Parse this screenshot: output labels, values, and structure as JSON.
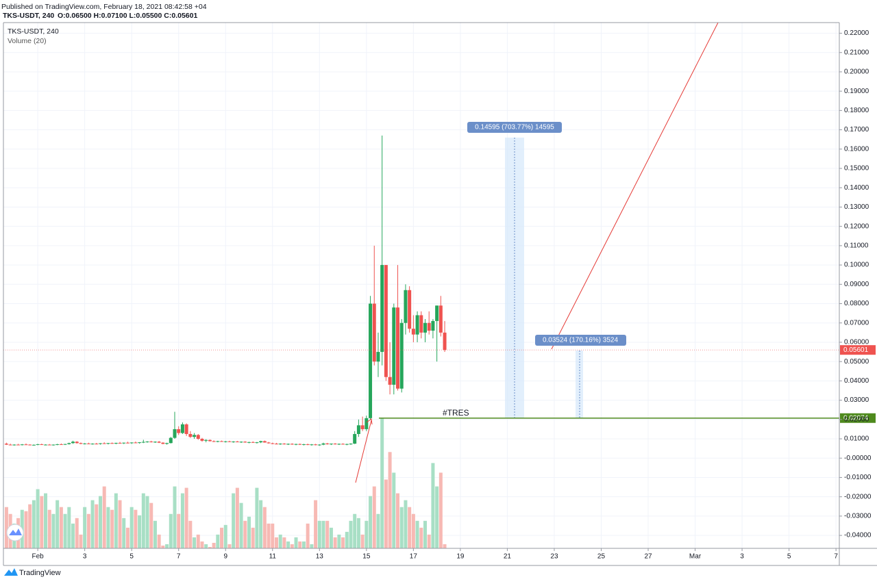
{
  "header": {
    "published": "Published on TradingView.com, February 18, 2021 08:42:58 +04",
    "symbol": "TKS-USDT, 240",
    "ohlc": "O:0.06500 H:0.07100 L:0.05500 C:0.05601",
    "volume_label": "Volume (20)"
  },
  "footer": {
    "brand": "TradingView"
  },
  "measures": [
    "0.14595 (703.77%) 14595",
    "0.03524 (170.16%) 3524"
  ],
  "chart_data": {
    "type": "candlestick",
    "up_color": "#26a65b",
    "down_color": "#ef5350",
    "up_volume_color": "#a8dfc5",
    "down_volume_color": "#f7b9b4",
    "xlim": [
      -35.1,
      819.4
    ],
    "xticks": [
      {
        "value": 0,
        "label": "Feb"
      },
      {
        "value": 48,
        "label": "3"
      },
      {
        "value": 96,
        "label": "5"
      },
      {
        "value": 144,
        "label": "7"
      },
      {
        "value": 192,
        "label": "9"
      },
      {
        "value": 240,
        "label": "11"
      },
      {
        "value": 288,
        "label": "13"
      },
      {
        "value": 336,
        "label": "15"
      },
      {
        "value": 384,
        "label": "17"
      },
      {
        "value": 432,
        "label": "19"
      },
      {
        "value": 480,
        "label": "21"
      },
      {
        "value": 528,
        "label": "23"
      },
      {
        "value": 576,
        "label": "25"
      },
      {
        "value": 624,
        "label": "27"
      },
      {
        "value": 672,
        "label": "Mar"
      },
      {
        "value": 720,
        "label": "3"
      },
      {
        "value": 768,
        "label": "5"
      },
      {
        "value": 816,
        "label": "7"
      }
    ],
    "ylim": [
      -0.0467,
      0.2255
    ],
    "yticks": [
      {
        "value": 0.22,
        "label": "0.22000"
      },
      {
        "value": 0.21,
        "label": "0.21000"
      },
      {
        "value": 0.2,
        "label": "0.20000"
      },
      {
        "value": 0.19,
        "label": "0.19000"
      },
      {
        "value": 0.18,
        "label": "0.18000"
      },
      {
        "value": 0.17,
        "label": "0.17000"
      },
      {
        "value": 0.16,
        "label": "0.16000"
      },
      {
        "value": 0.15,
        "label": "0.15000"
      },
      {
        "value": 0.14,
        "label": "0.14000"
      },
      {
        "value": 0.13,
        "label": "0.13000"
      },
      {
        "value": 0.12,
        "label": "0.12000"
      },
      {
        "value": 0.11,
        "label": "0.11000"
      },
      {
        "value": 0.1,
        "label": "0.10000"
      },
      {
        "value": 0.09,
        "label": "0.09000"
      },
      {
        "value": 0.08,
        "label": "0.08000"
      },
      {
        "value": 0.07,
        "label": "0.07000"
      },
      {
        "value": 0.06,
        "label": "0.06000"
      },
      {
        "value": 0.05,
        "label": "0.05000"
      },
      {
        "value": 0.04,
        "label": "0.04000"
      },
      {
        "value": 0.03,
        "label": "0.03000"
      },
      {
        "value": 0.02,
        "label": "0.02000"
      },
      {
        "value": 0.01,
        "label": "0.01000"
      },
      {
        "value": 0,
        "label": "-0.00000"
      },
      {
        "value": -0.01,
        "label": "-0.01000"
      },
      {
        "value": -0.02,
        "label": "-0.02000"
      },
      {
        "value": -0.03,
        "label": "-0.03000"
      },
      {
        "value": -0.04,
        "label": "-0.04000"
      }
    ],
    "volume_lim": [
      0,
      100
    ],
    "last_price": {
      "value": 0.05601,
      "label": "0.05601",
      "color": "#ef5350"
    },
    "level": {
      "value": 0.02074,
      "label": "0.02074",
      "name": "#TRES",
      "color": "#4e8a1d"
    },
    "candles": [
      {
        "t": -32,
        "o": 0.0075,
        "h": 0.008,
        "l": 0.0068,
        "c": 0.007,
        "v": 30
      },
      {
        "t": -28,
        "o": 0.007,
        "h": 0.0075,
        "l": 0.0066,
        "c": 0.0068,
        "v": 25
      },
      {
        "t": -24,
        "o": 0.0068,
        "h": 0.0072,
        "l": 0.0065,
        "c": 0.007,
        "v": 18
      },
      {
        "t": -20,
        "o": 0.007,
        "h": 0.0074,
        "l": 0.0067,
        "c": 0.0069,
        "v": 22
      },
      {
        "t": -16,
        "o": 0.0069,
        "h": 0.0073,
        "l": 0.0066,
        "c": 0.0071,
        "v": 28
      },
      {
        "t": -12,
        "o": 0.0071,
        "h": 0.0076,
        "l": 0.0068,
        "c": 0.007,
        "v": 27
      },
      {
        "t": -8,
        "o": 0.007,
        "h": 0.0072,
        "l": 0.0066,
        "c": 0.0068,
        "v": 32
      },
      {
        "t": -4,
        "o": 0.0068,
        "h": 0.0071,
        "l": 0.0065,
        "c": 0.0069,
        "v": 35
      },
      {
        "t": 0,
        "o": 0.0069,
        "h": 0.0074,
        "l": 0.0067,
        "c": 0.0072,
        "v": 43
      },
      {
        "t": 4,
        "o": 0.0072,
        "h": 0.0075,
        "l": 0.0068,
        "c": 0.0069,
        "v": 38
      },
      {
        "t": 8,
        "o": 0.0069,
        "h": 0.0072,
        "l": 0.0066,
        "c": 0.007,
        "v": 40
      },
      {
        "t": 12,
        "o": 0.007,
        "h": 0.0073,
        "l": 0.0067,
        "c": 0.0068,
        "v": 28
      },
      {
        "t": 16,
        "o": 0.0068,
        "h": 0.0071,
        "l": 0.0065,
        "c": 0.007,
        "v": 25
      },
      {
        "t": 20,
        "o": 0.007,
        "h": 0.0074,
        "l": 0.0067,
        "c": 0.0072,
        "v": 35
      },
      {
        "t": 24,
        "o": 0.0072,
        "h": 0.0076,
        "l": 0.0069,
        "c": 0.0071,
        "v": 30
      },
      {
        "t": 28,
        "o": 0.0071,
        "h": 0.0074,
        "l": 0.0068,
        "c": 0.0073,
        "v": 25
      },
      {
        "t": 32,
        "o": 0.0073,
        "h": 0.008,
        "l": 0.007,
        "c": 0.0078,
        "v": 30
      },
      {
        "t": 36,
        "o": 0.0078,
        "h": 0.009,
        "l": 0.0074,
        "c": 0.0085,
        "v": 18
      },
      {
        "t": 40,
        "o": 0.0085,
        "h": 0.0088,
        "l": 0.0075,
        "c": 0.0078,
        "v": 22
      },
      {
        "t": 44,
        "o": 0.0078,
        "h": 0.0081,
        "l": 0.0072,
        "c": 0.0074,
        "v": 10
      },
      {
        "t": 48,
        "o": 0.0074,
        "h": 0.0078,
        "l": 0.0071,
        "c": 0.0076,
        "v": 30
      },
      {
        "t": 52,
        "o": 0.0076,
        "h": 0.008,
        "l": 0.0072,
        "c": 0.0073,
        "v": 25
      },
      {
        "t": 56,
        "o": 0.0073,
        "h": 0.0077,
        "l": 0.007,
        "c": 0.0075,
        "v": 35
      },
      {
        "t": 60,
        "o": 0.0075,
        "h": 0.0079,
        "l": 0.0071,
        "c": 0.0074,
        "v": 32
      },
      {
        "t": 64,
        "o": 0.0074,
        "h": 0.0078,
        "l": 0.007,
        "c": 0.0077,
        "v": 38
      },
      {
        "t": 68,
        "o": 0.0077,
        "h": 0.0082,
        "l": 0.0073,
        "c": 0.0075,
        "v": 45
      },
      {
        "t": 72,
        "o": 0.0075,
        "h": 0.0079,
        "l": 0.0071,
        "c": 0.0078,
        "v": 30
      },
      {
        "t": 76,
        "o": 0.0078,
        "h": 0.0081,
        "l": 0.0074,
        "c": 0.0076,
        "v": 28
      },
      {
        "t": 80,
        "o": 0.0076,
        "h": 0.008,
        "l": 0.0072,
        "c": 0.0079,
        "v": 40
      },
      {
        "t": 84,
        "o": 0.0079,
        "h": 0.0084,
        "l": 0.0075,
        "c": 0.0077,
        "v": 35
      },
      {
        "t": 88,
        "o": 0.0077,
        "h": 0.0081,
        "l": 0.0073,
        "c": 0.008,
        "v": 22
      },
      {
        "t": 92,
        "o": 0.008,
        "h": 0.0085,
        "l": 0.0076,
        "c": 0.0078,
        "v": 15
      },
      {
        "t": 96,
        "o": 0.0078,
        "h": 0.0082,
        "l": 0.0074,
        "c": 0.0081,
        "v": 30
      },
      {
        "t": 100,
        "o": 0.0081,
        "h": 0.0086,
        "l": 0.0077,
        "c": 0.0079,
        "v": 28
      },
      {
        "t": 104,
        "o": 0.0079,
        "h": 0.0083,
        "l": 0.0075,
        "c": 0.0082,
        "v": 24
      },
      {
        "t": 108,
        "o": 0.0082,
        "h": 0.0095,
        "l": 0.0078,
        "c": 0.0084,
        "v": 40
      },
      {
        "t": 112,
        "o": 0.0084,
        "h": 0.0088,
        "l": 0.008,
        "c": 0.0086,
        "v": 38
      },
      {
        "t": 116,
        "o": 0.0086,
        "h": 0.009,
        "l": 0.0081,
        "c": 0.0083,
        "v": 33
      },
      {
        "t": 120,
        "o": 0.0083,
        "h": 0.0087,
        "l": 0.0079,
        "c": 0.0085,
        "v": 20
      },
      {
        "t": 124,
        "o": 0.0085,
        "h": 0.0089,
        "l": 0.0078,
        "c": 0.008,
        "v": 10
      },
      {
        "t": 128,
        "o": 0.008,
        "h": 0.0083,
        "l": 0.0072,
        "c": 0.0074,
        "v": 2
      },
      {
        "t": 132,
        "o": 0.0074,
        "h": 0.008,
        "l": 0.007,
        "c": 0.0078,
        "v": 3
      },
      {
        "t": 136,
        "o": 0.0078,
        "h": 0.011,
        "l": 0.0076,
        "c": 0.0105,
        "v": 25
      },
      {
        "t": 140,
        "o": 0.0105,
        "h": 0.024,
        "l": 0.01,
        "c": 0.015,
        "v": 45
      },
      {
        "t": 144,
        "o": 0.015,
        "h": 0.0165,
        "l": 0.012,
        "c": 0.013,
        "v": 25
      },
      {
        "t": 148,
        "o": 0.013,
        "h": 0.0185,
        "l": 0.0125,
        "c": 0.0175,
        "v": 40
      },
      {
        "t": 152,
        "o": 0.0175,
        "h": 0.018,
        "l": 0.0115,
        "c": 0.0125,
        "v": 44
      },
      {
        "t": 156,
        "o": 0.0125,
        "h": 0.014,
        "l": 0.0105,
        "c": 0.011,
        "v": 20
      },
      {
        "t": 160,
        "o": 0.011,
        "h": 0.013,
        "l": 0.01,
        "c": 0.012,
        "v": 8
      },
      {
        "t": 164,
        "o": 0.012,
        "h": 0.0125,
        "l": 0.0095,
        "c": 0.01,
        "v": 10
      },
      {
        "t": 168,
        "o": 0.01,
        "h": 0.0105,
        "l": 0.0085,
        "c": 0.009,
        "v": 5
      },
      {
        "t": 172,
        "o": 0.009,
        "h": 0.0098,
        "l": 0.0082,
        "c": 0.0094,
        "v": 3
      },
      {
        "t": 176,
        "o": 0.0094,
        "h": 0.0097,
        "l": 0.0086,
        "c": 0.0088,
        "v": 1
      },
      {
        "t": 180,
        "o": 0.0088,
        "h": 0.0092,
        "l": 0.0083,
        "c": 0.0086,
        "v": 4
      },
      {
        "t": 184,
        "o": 0.0086,
        "h": 0.009,
        "l": 0.0082,
        "c": 0.0088,
        "v": 10
      },
      {
        "t": 188,
        "o": 0.0088,
        "h": 0.0091,
        "l": 0.0084,
        "c": 0.0085,
        "v": 15
      },
      {
        "t": 192,
        "o": 0.0085,
        "h": 0.0089,
        "l": 0.0081,
        "c": 0.0087,
        "v": 17
      },
      {
        "t": 196,
        "o": 0.0087,
        "h": 0.009,
        "l": 0.0083,
        "c": 0.0084,
        "v": 3
      },
      {
        "t": 200,
        "o": 0.0084,
        "h": 0.0088,
        "l": 0.008,
        "c": 0.0086,
        "v": 40
      },
      {
        "t": 204,
        "o": 0.0086,
        "h": 0.0089,
        "l": 0.0082,
        "c": 0.0083,
        "v": 44
      },
      {
        "t": 208,
        "o": 0.0083,
        "h": 0.0087,
        "l": 0.0079,
        "c": 0.0085,
        "v": 33
      },
      {
        "t": 212,
        "o": 0.0085,
        "h": 0.0088,
        "l": 0.008,
        "c": 0.0081,
        "v": 20
      },
      {
        "t": 216,
        "o": 0.0081,
        "h": 0.0085,
        "l": 0.0077,
        "c": 0.0083,
        "v": 23
      },
      {
        "t": 220,
        "o": 0.0083,
        "h": 0.0087,
        "l": 0.0079,
        "c": 0.008,
        "v": 15
      },
      {
        "t": 224,
        "o": 0.008,
        "h": 0.0084,
        "l": 0.0076,
        "c": 0.0082,
        "v": 44
      },
      {
        "t": 228,
        "o": 0.0082,
        "h": 0.009,
        "l": 0.0078,
        "c": 0.0088,
        "v": 35
      },
      {
        "t": 232,
        "o": 0.0088,
        "h": 0.0091,
        "l": 0.008,
        "c": 0.0081,
        "v": 30
      },
      {
        "t": 236,
        "o": 0.0081,
        "h": 0.0084,
        "l": 0.0075,
        "c": 0.0077,
        "v": 18
      },
      {
        "t": 240,
        "o": 0.0077,
        "h": 0.008,
        "l": 0.0072,
        "c": 0.0075,
        "v": 18
      },
      {
        "t": 244,
        "o": 0.0075,
        "h": 0.0079,
        "l": 0.0071,
        "c": 0.0073,
        "v": 8
      },
      {
        "t": 248,
        "o": 0.0073,
        "h": 0.0077,
        "l": 0.0069,
        "c": 0.0075,
        "v": 10
      },
      {
        "t": 252,
        "o": 0.0075,
        "h": 0.0078,
        "l": 0.007,
        "c": 0.0072,
        "v": 8
      },
      {
        "t": 256,
        "o": 0.0072,
        "h": 0.0076,
        "l": 0.0068,
        "c": 0.0074,
        "v": 5
      },
      {
        "t": 260,
        "o": 0.0074,
        "h": 0.0077,
        "l": 0.0069,
        "c": 0.0071,
        "v": 3
      },
      {
        "t": 264,
        "o": 0.0071,
        "h": 0.0075,
        "l": 0.0067,
        "c": 0.0073,
        "v": 8
      },
      {
        "t": 268,
        "o": 0.0073,
        "h": 0.0076,
        "l": 0.0068,
        "c": 0.007,
        "v": 5
      },
      {
        "t": 272,
        "o": 0.007,
        "h": 0.0074,
        "l": 0.0066,
        "c": 0.0072,
        "v": 5
      },
      {
        "t": 276,
        "o": 0.0072,
        "h": 0.0075,
        "l": 0.0067,
        "c": 0.0069,
        "v": 18
      },
      {
        "t": 280,
        "o": 0.0069,
        "h": 0.0073,
        "l": 0.0065,
        "c": 0.0071,
        "v": 3
      },
      {
        "t": 284,
        "o": 0.0071,
        "h": 0.0074,
        "l": 0.0066,
        "c": 0.0068,
        "v": 35
      },
      {
        "t": 288,
        "o": 0.0068,
        "h": 0.0072,
        "l": 0.0064,
        "c": 0.007,
        "v": 20
      },
      {
        "t": 292,
        "o": 0.007,
        "h": 0.008,
        "l": 0.0067,
        "c": 0.0076,
        "v": 20
      },
      {
        "t": 296,
        "o": 0.0076,
        "h": 0.0079,
        "l": 0.007,
        "c": 0.0072,
        "v": 20
      },
      {
        "t": 300,
        "o": 0.0072,
        "h": 0.0076,
        "l": 0.0068,
        "c": 0.0075,
        "v": 15
      },
      {
        "t": 304,
        "o": 0.0075,
        "h": 0.0078,
        "l": 0.007,
        "c": 0.0072,
        "v": 8
      },
      {
        "t": 308,
        "o": 0.0072,
        "h": 0.0076,
        "l": 0.0068,
        "c": 0.0074,
        "v": 10
      },
      {
        "t": 312,
        "o": 0.0074,
        "h": 0.0077,
        "l": 0.007,
        "c": 0.0071,
        "v": 8
      },
      {
        "t": 316,
        "o": 0.0071,
        "h": 0.0075,
        "l": 0.0067,
        "c": 0.0073,
        "v": 12
      },
      {
        "t": 320,
        "o": 0.0073,
        "h": 0.0077,
        "l": 0.0069,
        "c": 0.0075,
        "v": 20
      },
      {
        "t": 324,
        "o": 0.0075,
        "h": 0.014,
        "l": 0.0073,
        "c": 0.0125,
        "v": 25
      },
      {
        "t": 328,
        "o": 0.0125,
        "h": 0.02,
        "l": 0.011,
        "c": 0.017,
        "v": 22
      },
      {
        "t": 332,
        "o": 0.017,
        "h": 0.0215,
        "l": 0.014,
        "c": 0.015,
        "v": 10
      },
      {
        "t": 336,
        "o": 0.015,
        "h": 0.022,
        "l": 0.014,
        "c": 0.0207,
        "v": 20
      },
      {
        "t": 340,
        "o": 0.0207,
        "h": 0.084,
        "l": 0.02,
        "c": 0.08,
        "v": 38
      },
      {
        "t": 344,
        "o": 0.08,
        "h": 0.11,
        "l": 0.048,
        "c": 0.05,
        "v": 45
      },
      {
        "t": 348,
        "o": 0.05,
        "h": 0.065,
        "l": 0.042,
        "c": 0.055,
        "v": 25
      },
      {
        "t": 352,
        "o": 0.055,
        "h": 0.167,
        "l": 0.048,
        "c": 0.1,
        "v": 95
      },
      {
        "t": 356,
        "o": 0.1,
        "h": 0.1,
        "l": 0.04,
        "c": 0.042,
        "v": 50
      },
      {
        "t": 360,
        "o": 0.042,
        "h": 0.06,
        "l": 0.033,
        "c": 0.038,
        "v": 70
      },
      {
        "t": 364,
        "o": 0.038,
        "h": 0.08,
        "l": 0.033,
        "c": 0.078,
        "v": 55
      },
      {
        "t": 368,
        "o": 0.078,
        "h": 0.1,
        "l": 0.035,
        "c": 0.036,
        "v": 40
      },
      {
        "t": 372,
        "o": 0.036,
        "h": 0.072,
        "l": 0.034,
        "c": 0.07,
        "v": 30
      },
      {
        "t": 376,
        "o": 0.07,
        "h": 0.09,
        "l": 0.064,
        "c": 0.087,
        "v": 35
      },
      {
        "t": 380,
        "o": 0.087,
        "h": 0.089,
        "l": 0.065,
        "c": 0.067,
        "v": 30
      },
      {
        "t": 384,
        "o": 0.067,
        "h": 0.074,
        "l": 0.06,
        "c": 0.064,
        "v": 25
      },
      {
        "t": 388,
        "o": 0.064,
        "h": 0.076,
        "l": 0.06,
        "c": 0.074,
        "v": 20
      },
      {
        "t": 392,
        "o": 0.074,
        "h": 0.076,
        "l": 0.062,
        "c": 0.065,
        "v": 15
      },
      {
        "t": 396,
        "o": 0.065,
        "h": 0.072,
        "l": 0.06,
        "c": 0.07,
        "v": 20
      },
      {
        "t": 400,
        "o": 0.07,
        "h": 0.076,
        "l": 0.064,
        "c": 0.066,
        "v": 10
      },
      {
        "t": 404,
        "o": 0.066,
        "h": 0.072,
        "l": 0.062,
        "c": 0.071,
        "v": 62
      },
      {
        "t": 408,
        "o": 0.071,
        "h": 0.079,
        "l": 0.05,
        "c": 0.079,
        "v": 45
      },
      {
        "t": 412,
        "o": 0.079,
        "h": 0.084,
        "l": 0.063,
        "c": 0.065,
        "v": 55
      },
      {
        "t": 416,
        "o": 0.065,
        "h": 0.071,
        "l": 0.055,
        "c": 0.05601,
        "v": 3
      }
    ]
  }
}
